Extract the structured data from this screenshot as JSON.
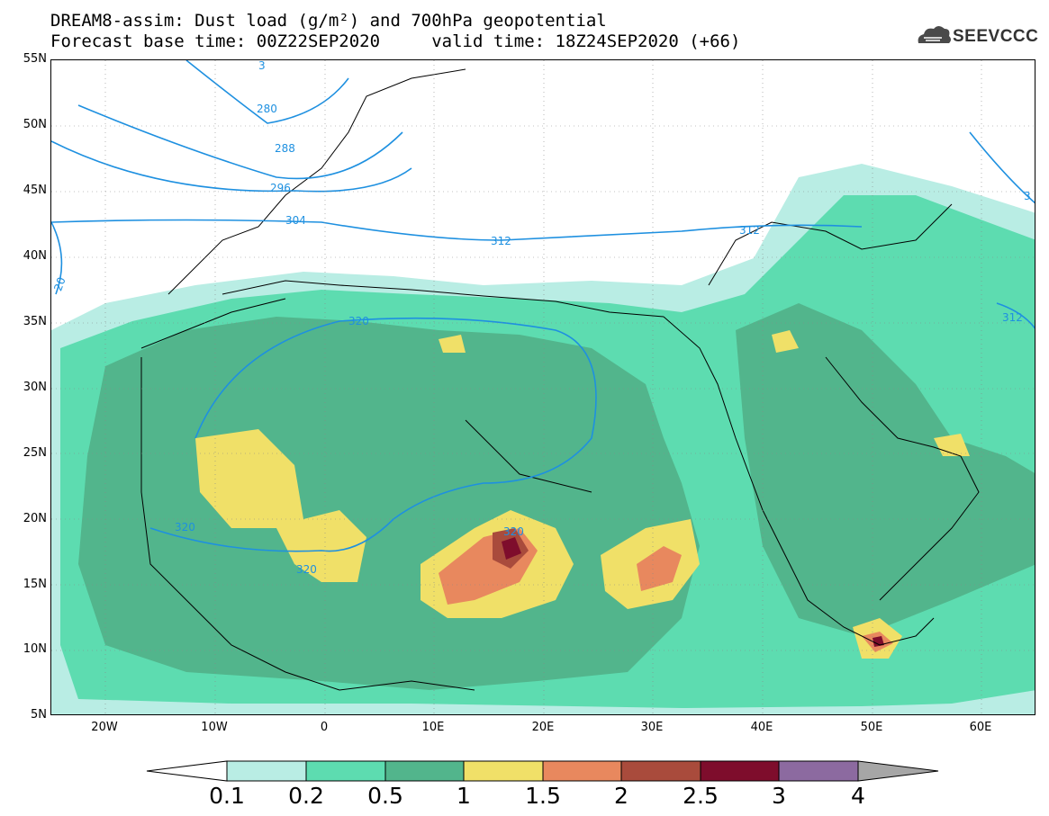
{
  "title": {
    "line1": "DREAM8-assim: Dust load (g/m²) and 700hPa geopotential",
    "line2": "Forecast base time: 00Z22SEP2020     valid time: 18Z24SEP2020 (+66)"
  },
  "logo": {
    "text": "SEEVCCC",
    "icon": "cloud-logo-icon"
  },
  "axes": {
    "y_ticks": [
      "55N",
      "50N",
      "45N",
      "40N",
      "35N",
      "30N",
      "25N",
      "20N",
      "15N",
      "10N",
      "5N"
    ],
    "x_ticks": [
      "20W",
      "10W",
      "0",
      "10E",
      "20E",
      "30E",
      "40E",
      "50E",
      "60E"
    ],
    "lon_range": [
      -25,
      65
    ],
    "lat_range": [
      5,
      55
    ],
    "grid": "dotted"
  },
  "contours": {
    "label_color": "#1e90e0",
    "labels": [
      "280",
      "288",
      "296",
      "304",
      "312",
      "320",
      "320",
      "320",
      "320",
      "312",
      "312",
      "20",
      "3",
      "3"
    ]
  },
  "colorbar": {
    "labels": [
      "0.1",
      "0.2",
      "0.5",
      "1",
      "1.5",
      "2",
      "2.5",
      "3",
      "4"
    ],
    "colors": [
      "#ffffff",
      "#b9ede4",
      "#5ddcb0",
      "#52b58c",
      "#f0e068",
      "#e8885e",
      "#a94b3c",
      "#7e0d2c",
      "#8c6aa0",
      "#a6a6a6"
    ]
  },
  "legend_colors": {
    "level_01": "#b9ede4",
    "level_02": "#5ddcb0",
    "level_05": "#52b58c",
    "level_1": "#f0e068",
    "level_15": "#e8885e",
    "level_2": "#a94b3c",
    "level_25": "#7e0d2c"
  }
}
